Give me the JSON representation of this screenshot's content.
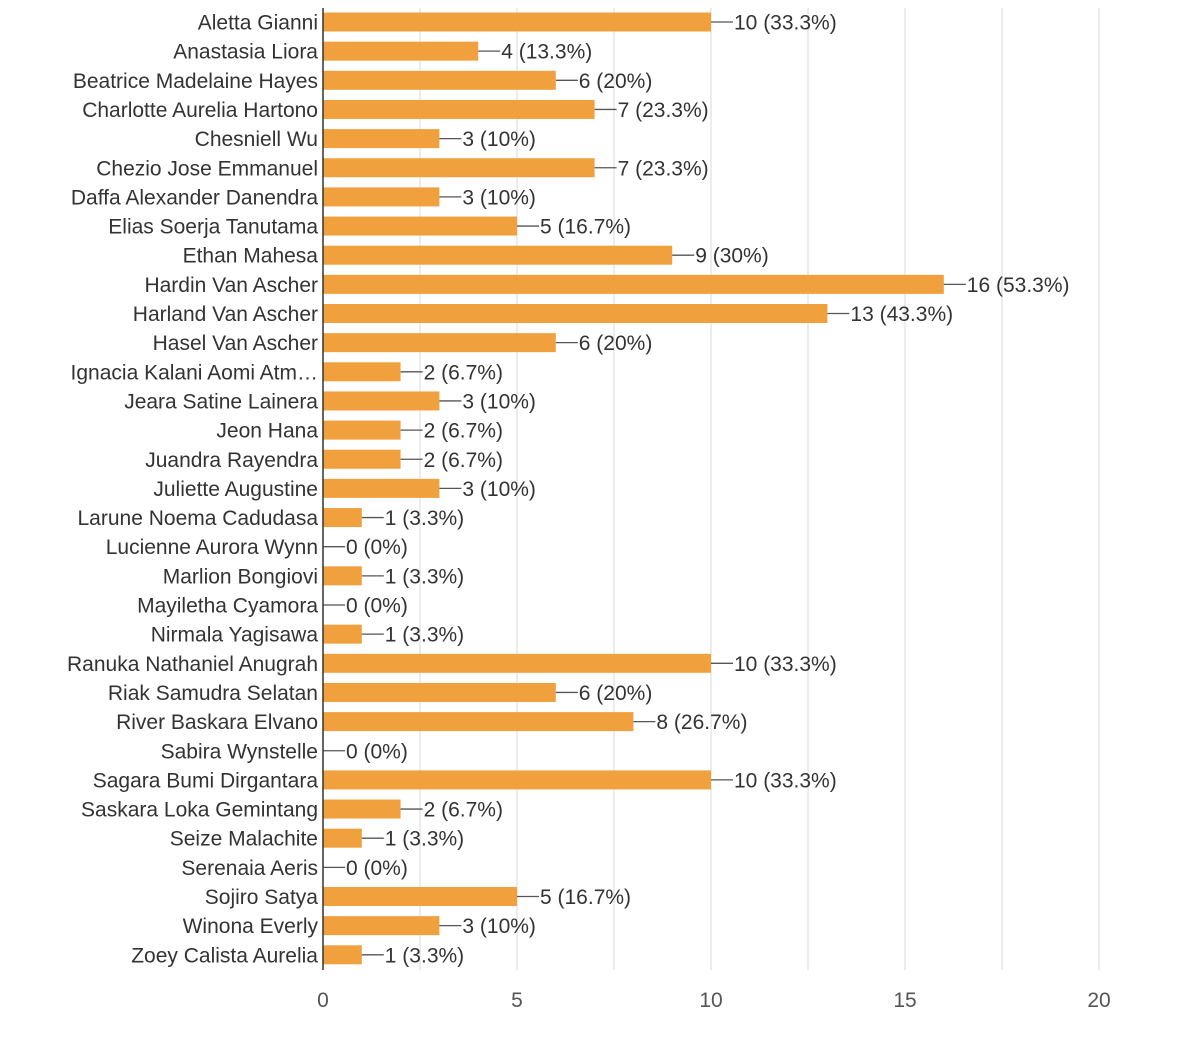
{
  "chart_data": {
    "type": "bar",
    "orientation": "horizontal",
    "title": "",
    "xlabel": "",
    "ylabel": "",
    "xlim": [
      0,
      20
    ],
    "x_ticks": [
      "0",
      "5",
      "10",
      "15",
      "20"
    ],
    "grid": true,
    "bar_color": "#f0a03c",
    "categories": [
      "Aletta Gianni",
      "Anastasia Liora",
      "Beatrice Madelaine Hayes",
      "Charlotte Aurelia Hartono",
      "Chesniell Wu",
      "Chezio Jose Emmanuel",
      "Daffa Alexander Danendra",
      "Elias Soerja Tanutama",
      "Ethan Mahesa",
      "Hardin Van Ascher",
      "Harland Van Ascher",
      "Hasel Van Ascher",
      "Ignacia Kalani Aomi Atm…",
      "Jeara Satine Lainera",
      "Jeon Hana",
      "Juandra Rayendra",
      "Juliette Augustine",
      "Larune Noema Cadudasa",
      "Lucienne Aurora Wynn",
      "Marlion Bongiovi",
      "Mayiletha Cyamora",
      "Nirmala Yagisawa",
      "Ranuka Nathaniel Anugrah",
      "Riak Samudra Selatan",
      "River Baskara Elvano",
      "Sabira Wynstelle",
      "Sagara Bumi Dirgantara",
      "Saskara Loka Gemintang",
      "Seize Malachite",
      "Serenaia Aeris",
      "Sojiro Satya",
      "Winona Everly",
      "Zoey Calista Aurelia"
    ],
    "values": [
      10,
      4,
      6,
      7,
      3,
      7,
      3,
      5,
      9,
      16,
      13,
      6,
      2,
      3,
      2,
      2,
      3,
      1,
      0,
      1,
      0,
      1,
      10,
      6,
      8,
      0,
      10,
      2,
      1,
      0,
      5,
      3,
      1
    ],
    "value_labels": [
      "10 (33.3%)",
      "4 (13.3%)",
      "6 (20%)",
      "7 (23.3%)",
      "3 (10%)",
      "7 (23.3%)",
      "3 (10%)",
      "5 (16.7%)",
      "9 (30%)",
      "16 (53.3%)",
      "13 (43.3%)",
      "6 (20%)",
      "2 (6.7%)",
      "3 (10%)",
      "2 (6.7%)",
      "2 (6.7%)",
      "3 (10%)",
      "1 (3.3%)",
      "0 (0%)",
      "1 (3.3%)",
      "0 (0%)",
      "1 (3.3%)",
      "10 (33.3%)",
      "6 (20%)",
      "8 (26.7%)",
      "0 (0%)",
      "10 (33.3%)",
      "2 (6.7%)",
      "1 (3.3%)",
      "0 (0%)",
      "5 (16.7%)",
      "3 (10%)",
      "1 (3.3%)"
    ]
  }
}
